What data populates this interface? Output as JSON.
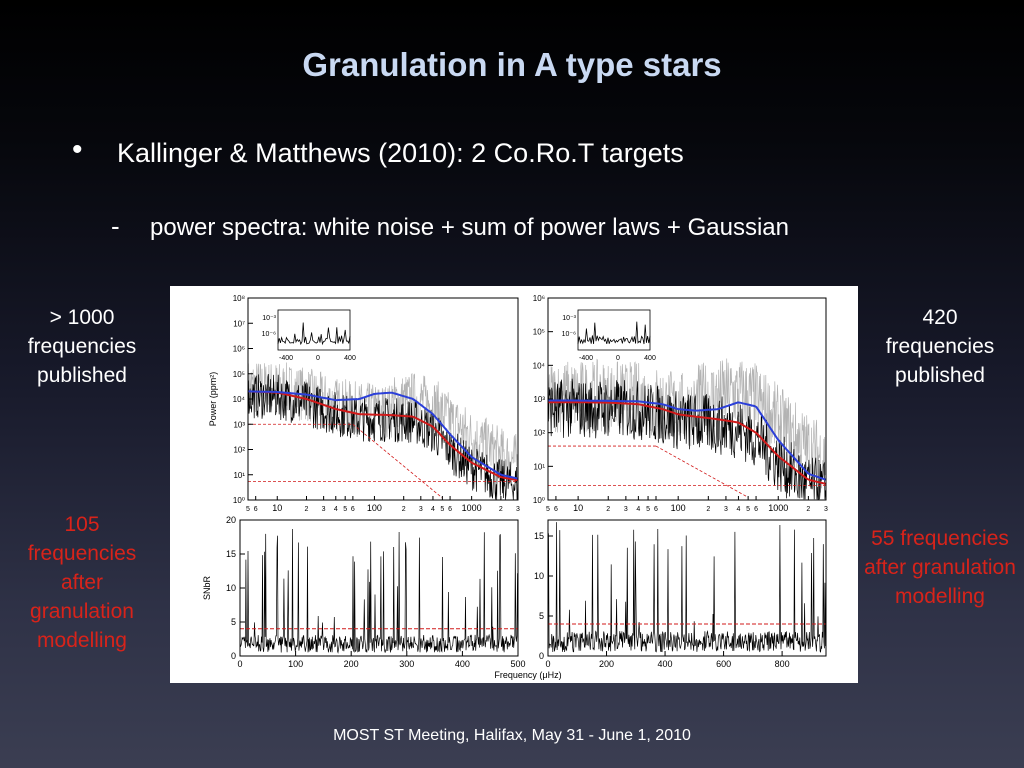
{
  "slide": {
    "title": "Granulation in A type stars",
    "bullet": "Kallinger & Matthews (2010): 2 Co.Ro.T targets",
    "subbullet": "power spectra: white noise + sum of power laws + Gaussian",
    "left_top": "> 1000 frequencies published",
    "left_bottom": "105 frequencies after granulation modelling",
    "right_top": "420 frequencies published",
    "right_bottom": "55 frequencies after granulation modelling",
    "footer": "MOST ST Meeting, Halifax, May 31 - June 1, 2010"
  },
  "colors": {
    "title": "#c9d9f2",
    "highlight_red": "#d8231a",
    "fit_blue": "#2b3fd9",
    "fit_red": "#d11a1a",
    "spectrum_black": "#000000",
    "spectrum_gray": "#b3b3b3"
  },
  "chart_data": [
    {
      "type": "line",
      "xscale": "log",
      "yscale": "log",
      "ylabel": "Power (ppm²)",
      "x_ticklabels": [
        "5",
        "6",
        "10",
        "2",
        "3",
        "4",
        "5",
        "6",
        "100",
        "2",
        "3",
        "4",
        "5",
        "6",
        "1000",
        "2",
        "3"
      ],
      "y_ticklabels": [
        "10⁰",
        "10¹",
        "10²",
        "10³",
        "10⁴",
        "10⁵",
        "10⁶",
        "10⁷",
        "10⁸"
      ],
      "ylim": [
        1,
        100000000
      ],
      "series": [
        {
          "x": [
            5,
            10,
            20,
            40,
            70,
            100,
            150,
            250,
            400,
            600,
            1000,
            2000,
            3000
          ],
          "values": [
            20000,
            18000,
            10000,
            4000,
            2500,
            2400,
            2300,
            2000,
            800,
            150,
            30,
            8,
            6
          ]
        },
        {
          "x": [
            5,
            10,
            20,
            40,
            70,
            100,
            150,
            250,
            400,
            600,
            1000,
            2000,
            3000
          ],
          "values": [
            20000,
            19000,
            15000,
            9000,
            10000,
            16000,
            18000,
            10000,
            2500,
            400,
            50,
            10,
            7
          ]
        }
      ],
      "inset": {
        "x_ticklabels": [
          "-400",
          "0",
          "400"
        ],
        "y_ticklabels": [
          "10⁻³",
          "10⁻⁶"
        ]
      }
    },
    {
      "type": "line",
      "xscale": "log",
      "yscale": "log",
      "x_ticklabels": [
        "5",
        "6",
        "10",
        "2",
        "3",
        "4",
        "5",
        "6",
        "100",
        "2",
        "3",
        "4",
        "5",
        "6",
        "1000",
        "2",
        "3"
      ],
      "y_ticklabels": [
        "10⁰",
        "10¹",
        "10²",
        "10³",
        "10⁴",
        "10⁵",
        "10⁶"
      ],
      "ylim": [
        1,
        1000000
      ],
      "series": [
        {
          "x": [
            5,
            10,
            20,
            40,
            70,
            100,
            150,
            250,
            400,
            600,
            1000,
            2000,
            3000
          ],
          "values": [
            800,
            800,
            780,
            700,
            500,
            350,
            300,
            250,
            200,
            100,
            20,
            4,
            3
          ]
        },
        {
          "x": [
            5,
            10,
            20,
            40,
            70,
            100,
            150,
            250,
            400,
            600,
            1000,
            2000,
            3000
          ],
          "values": [
            900,
            900,
            880,
            850,
            700,
            500,
            450,
            500,
            800,
            600,
            60,
            6,
            4
          ]
        }
      ],
      "inset": {
        "x_ticklabels": [
          "-400",
          "0",
          "400"
        ],
        "y_ticklabels": [
          "10⁻³",
          "10⁻⁶"
        ]
      }
    },
    {
      "type": "line",
      "xlabel": "Frequency (μHz)",
      "ylabel": "SNbR",
      "x_ticklabels": [
        "0",
        "100",
        "200",
        "300",
        "400",
        "500"
      ],
      "y_ticklabels": [
        "0",
        "5",
        "10",
        "15",
        "20"
      ],
      "xlim": [
        0,
        500
      ],
      "ylim": [
        0,
        20
      ],
      "threshold": 4
    },
    {
      "type": "line",
      "x_ticklabels": [
        "0",
        "200",
        "400",
        "600",
        "800"
      ],
      "y_ticklabels": [
        "0",
        "5",
        "10",
        "15"
      ],
      "xlim": [
        0,
        950
      ],
      "ylim": [
        0,
        17
      ],
      "threshold": 4
    }
  ]
}
